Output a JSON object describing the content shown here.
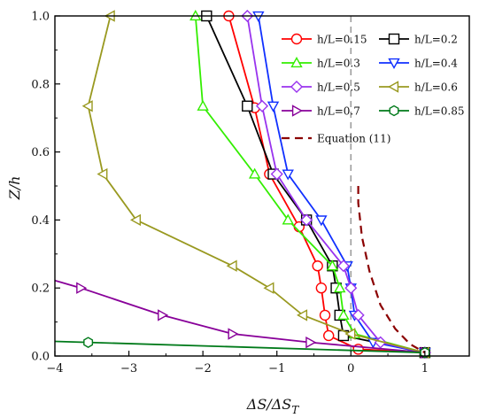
{
  "chart_data": {
    "type": "line",
    "xlabel_main": "ΔS/ΔS",
    "xlabel_sub": "T",
    "ylabel_main": "Z/h",
    "xlim": [
      -4,
      1.6
    ],
    "ylim": [
      0,
      1.0
    ],
    "xticks": [
      "−4",
      "−3",
      "−2",
      "−1",
      "0",
      "1"
    ],
    "yticks": [
      "0.0",
      "0.2",
      "0.4",
      "0.6",
      "0.8",
      "1.0"
    ],
    "grid": false,
    "legend_position": "top-right",
    "reference_line_x": 0,
    "series": [
      {
        "name": "h/L=0.15",
        "color": "#ff0000",
        "marker": "circle",
        "points": [
          [
            1.0,
            0.01
          ],
          [
            0.1,
            0.02
          ],
          [
            -0.3,
            0.06
          ],
          [
            -0.35,
            0.12
          ],
          [
            -0.4,
            0.2
          ],
          [
            -0.45,
            0.265
          ],
          [
            -0.7,
            0.38
          ],
          [
            -1.1,
            0.535
          ],
          [
            -1.3,
            0.73
          ],
          [
            -1.65,
            1.0
          ]
        ]
      },
      {
        "name": "h/L=0.2",
        "color": "#000000",
        "marker": "square",
        "points": [
          [
            1.0,
            0.01
          ],
          [
            -0.1,
            0.06
          ],
          [
            -0.15,
            0.12
          ],
          [
            -0.2,
            0.2
          ],
          [
            -0.25,
            0.265
          ],
          [
            -0.6,
            0.4
          ],
          [
            -1.05,
            0.535
          ],
          [
            -1.4,
            0.735
          ],
          [
            -1.95,
            1.0
          ]
        ]
      },
      {
        "name": "h/L=0.3",
        "color": "#33ee00",
        "marker": "triangle-up",
        "points": [
          [
            1.0,
            0.01
          ],
          [
            0.05,
            0.065
          ],
          [
            -0.1,
            0.12
          ],
          [
            -0.15,
            0.2
          ],
          [
            -0.25,
            0.265
          ],
          [
            -0.85,
            0.4
          ],
          [
            -1.3,
            0.535
          ],
          [
            -2.0,
            0.735
          ],
          [
            -2.1,
            1.0
          ]
        ]
      },
      {
        "name": "h/L=0.4",
        "color": "#1030ff",
        "marker": "triangle-down",
        "points": [
          [
            1.0,
            0.01
          ],
          [
            0.3,
            0.04
          ],
          [
            0.05,
            0.12
          ],
          [
            0.0,
            0.2
          ],
          [
            -0.05,
            0.265
          ],
          [
            -0.4,
            0.4
          ],
          [
            -0.85,
            0.535
          ],
          [
            -1.05,
            0.735
          ],
          [
            -1.25,
            1.0
          ]
        ]
      },
      {
        "name": "h/L=0.5",
        "color": "#9933ee",
        "marker": "diamond",
        "points": [
          [
            1.0,
            0.01
          ],
          [
            0.4,
            0.04
          ],
          [
            0.1,
            0.12
          ],
          [
            0.0,
            0.2
          ],
          [
            -0.1,
            0.265
          ],
          [
            -0.6,
            0.4
          ],
          [
            -1.0,
            0.535
          ],
          [
            -1.2,
            0.735
          ],
          [
            -1.4,
            1.0
          ]
        ]
      },
      {
        "name": "h/L=0.6",
        "color": "#999920",
        "marker": "triangle-left",
        "points": [
          [
            1.0,
            0.01
          ],
          [
            0.0,
            0.065
          ],
          [
            -0.65,
            0.12
          ],
          [
            -1.1,
            0.2
          ],
          [
            -1.6,
            0.265
          ],
          [
            -2.9,
            0.4
          ],
          [
            -3.35,
            0.535
          ],
          [
            -3.55,
            0.735
          ],
          [
            -3.25,
            1.0
          ]
        ]
      },
      {
        "name": "h/L=0.7",
        "color": "#880099",
        "marker": "triangle-right",
        "points": [
          [
            1.0,
            0.01
          ],
          [
            -0.55,
            0.04
          ],
          [
            -1.6,
            0.065
          ],
          [
            -2.55,
            0.12
          ],
          [
            -3.65,
            0.2
          ],
          [
            -4.0,
            0.222
          ]
        ]
      },
      {
        "name": "h/L=0.85",
        "color": "#007a1a",
        "marker": "hexagon",
        "points": [
          [
            1.0,
            0.01
          ],
          [
            -3.55,
            0.04
          ],
          [
            -4.0,
            0.043
          ]
        ]
      },
      {
        "name": "Equation (11)",
        "color": "#8b0000",
        "marker": "none",
        "dashed": true,
        "points": [
          [
            0.1,
            0.5
          ],
          [
            0.1,
            0.45
          ],
          [
            0.15,
            0.35
          ],
          [
            0.25,
            0.25
          ],
          [
            0.4,
            0.15
          ],
          [
            0.6,
            0.08
          ],
          [
            0.8,
            0.035
          ],
          [
            1.0,
            0.01
          ]
        ]
      }
    ]
  }
}
